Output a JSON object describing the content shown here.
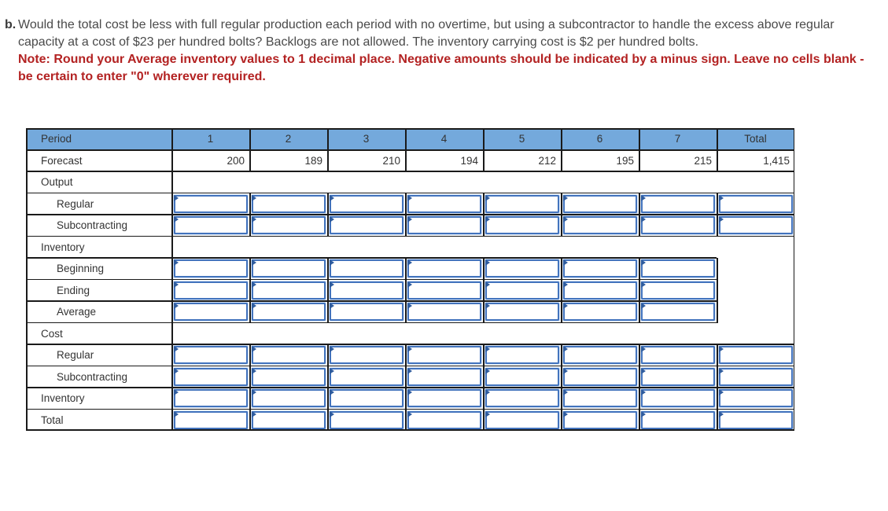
{
  "question": {
    "label": "b.",
    "text": "Would the total cost be less with full regular production each period with no overtime, but using a subcontractor to handle the excess above regular capacity at a cost of $23 per hundred bolts? Backlogs are not allowed. The inventory carrying cost is $2 per hundred bolts.",
    "note": "Note: Round your Average inventory values to 1 decimal place. Negative amounts should be indicated by a minus sign. Leave no cells blank - be certain to enter \"0\" wherever required."
  },
  "table": {
    "columns": [
      "Period",
      "1",
      "2",
      "3",
      "4",
      "5",
      "6",
      "7",
      "Total"
    ],
    "rows": [
      {
        "key": "forecast",
        "label": "Forecast",
        "type": "values",
        "indent": 0,
        "sep": "full",
        "values": [
          "200",
          "189",
          "210",
          "194",
          "212",
          "195",
          "215",
          "1,415"
        ]
      },
      {
        "key": "output",
        "label": "Output",
        "type": "section",
        "indent": 0,
        "sep": "full"
      },
      {
        "key": "output-regular",
        "label": "Regular",
        "type": "inputs",
        "indent": 1,
        "cells": 8,
        "sep": "full"
      },
      {
        "key": "output-subcontracting",
        "label": "Subcontracting",
        "type": "inputs",
        "indent": 1,
        "cells": 8,
        "sep": "full"
      },
      {
        "key": "inventory",
        "label": "Inventory",
        "type": "section",
        "indent": 0,
        "sep": "partial"
      },
      {
        "key": "inventory-beginning",
        "label": "Beginning",
        "type": "inputs",
        "indent": 1,
        "cells": 7,
        "sep": "partial"
      },
      {
        "key": "inventory-ending",
        "label": "Ending",
        "type": "inputs",
        "indent": 1,
        "cells": 7,
        "sep": "partial"
      },
      {
        "key": "inventory-average",
        "label": "Average",
        "type": "inputs",
        "indent": 1,
        "cells": 7,
        "sep": "partial"
      },
      {
        "key": "cost",
        "label": "Cost",
        "type": "section",
        "indent": 0,
        "sep": "full"
      },
      {
        "key": "cost-regular",
        "label": "Regular",
        "type": "inputs",
        "indent": 1,
        "cells": 8,
        "sep": "full"
      },
      {
        "key": "cost-subcontracting",
        "label": "Subcontracting",
        "type": "inputs",
        "indent": 1,
        "cells": 8,
        "sep": "full"
      },
      {
        "key": "inventory-cost",
        "label": "Inventory",
        "type": "inputs",
        "indent": 0,
        "cells": 8,
        "sep": "full"
      },
      {
        "key": "total",
        "label": "Total",
        "type": "inputs",
        "indent": 0,
        "cells": 8,
        "sep": "full"
      }
    ],
    "colors": {
      "page_text": "#4a4a4a",
      "note_red": "#b32222",
      "header_bg": "#74a9dc",
      "header_text": "#2c3e50",
      "table_text": "#333333",
      "grid": "#1a1a1a",
      "input_border": "#4273bd",
      "input_inner": "#d8e6f7",
      "input_marker": "#2f5c9e"
    }
  }
}
